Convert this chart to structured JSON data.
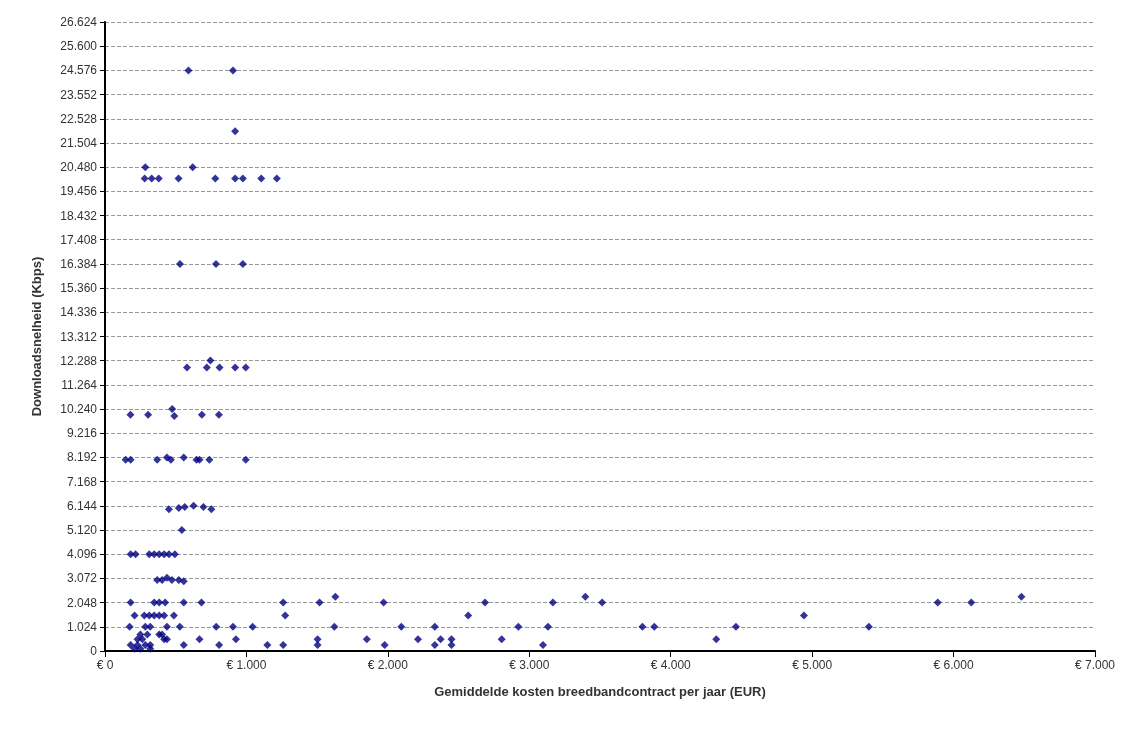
{
  "chart_data": {
    "type": "scatter",
    "xlabel": "Gemiddelde kosten breedbandcontract per jaar (EUR)",
    "ylabel": "Downloadsnelheid (Kbps)",
    "xlim": [
      0,
      7000
    ],
    "xticks": [
      {
        "value": 0,
        "label": "€ 0"
      },
      {
        "value": 1000,
        "label": "€ 1.000"
      },
      {
        "value": 2000,
        "label": "€ 2.000"
      },
      {
        "value": 3000,
        "label": "€ 3.000"
      },
      {
        "value": 4000,
        "label": "€ 4.000"
      },
      {
        "value": 5000,
        "label": "€ 5.000"
      },
      {
        "value": 6000,
        "label": "€ 6.000"
      },
      {
        "value": 7000,
        "label": "€ 7.000"
      }
    ],
    "ylim": [
      0,
      26624
    ],
    "yticks": [
      0,
      {
        "value": 1024,
        "label": "1.024"
      },
      {
        "value": 2048,
        "label": "2.048"
      },
      {
        "value": 3072,
        "label": "3.072"
      },
      {
        "value": 4096,
        "label": "4.096"
      },
      {
        "value": 5120,
        "label": "5.120"
      },
      {
        "value": 6144,
        "label": "6.144"
      },
      {
        "value": 7168,
        "label": "7.168"
      },
      {
        "value": 8192,
        "label": "8.192"
      },
      {
        "value": 9216,
        "label": "9.216"
      },
      {
        "value": 10240,
        "label": "10.240"
      },
      {
        "value": 11264,
        "label": "11.264"
      },
      {
        "value": 12288,
        "label": "12.288"
      },
      {
        "value": 13312,
        "label": "13.312"
      },
      {
        "value": 14336,
        "label": "14.336"
      },
      {
        "value": 15360,
        "label": "15.360"
      },
      {
        "value": 16384,
        "label": "16.384"
      },
      {
        "value": 17408,
        "label": "17.408"
      },
      {
        "value": 18432,
        "label": "18.432"
      },
      {
        "value": 19456,
        "label": "19.456"
      },
      {
        "value": 20480,
        "label": "20.480"
      },
      {
        "value": 21504,
        "label": "21.504"
      },
      {
        "value": 22528,
        "label": "22.528"
      },
      {
        "value": 23552,
        "label": "23.552"
      },
      {
        "value": 24576,
        "label": "24.576"
      },
      {
        "value": 25600,
        "label": "25.600"
      },
      {
        "value": 26624,
        "label": "26.624"
      }
    ],
    "grid": "y",
    "marker": "diamond",
    "series": [
      {
        "color": "#000080",
        "x": [
          590,
          905,
          920,
          285,
          620,
          280,
          330,
          380,
          520,
          780,
          920,
          975,
          1105,
          1215,
          530,
          785,
          975,
          580,
          720,
          745,
          810,
          920,
          995,
          180,
          305,
          475,
          490,
          685,
          805,
          146,
          181,
          369,
          438,
          466,
          557,
          647,
          668,
          738,
          995,
          452,
          522,
          564,
          626,
          696,
          752,
          543,
          181,
          216,
          313,
          348,
          383,
          418,
          452,
          494,
          369,
          404,
          438,
          473,
          522,
          557,
          181,
          348,
          383,
          425,
          557,
          682,
          1260,
          1517,
          1970,
          2687,
          3167,
          3515,
          5888,
          6125,
          1629,
          3396,
          6480,
          209,
          278,
          313,
          348,
          383,
          418,
          487,
          1274,
          2568,
          4942,
          174,
          285,
          320,
          438,
          529,
          786,
          905,
          1044,
          1622,
          2095,
          2332,
          2923,
          3132,
          3800,
          3884,
          4461,
          5401,
          250,
          299,
          383,
          404,
          230,
          264,
          418,
          438,
          668,
          926,
          1503,
          1851,
          2213,
          2373,
          2450,
          2805,
          4322,
          181,
          230,
          285,
          320,
          557,
          807,
          1148,
          1260,
          1503,
          1977,
          2332,
          2450,
          3097,
          209,
          250,
          320
        ],
        "values": [
          24576,
          24576,
          22000,
          20480,
          20480,
          20000,
          20000,
          20000,
          20000,
          20000,
          20000,
          20000,
          20000,
          20000,
          16384,
          16384,
          16384,
          12000,
          12000,
          12300,
          12000,
          12000,
          12000,
          10000,
          10000,
          10240,
          9950,
          10000,
          10000,
          8100,
          8100,
          8100,
          8192,
          8100,
          8192,
          8100,
          8100,
          8100,
          8100,
          6000,
          6050,
          6100,
          6144,
          6100,
          6000,
          5120,
          4096,
          4096,
          4096,
          4096,
          4096,
          4096,
          4096,
          4096,
          3000,
          3000,
          3100,
          3000,
          3000,
          2950,
          2048,
          2048,
          2048,
          2048,
          2048,
          2048,
          2048,
          2048,
          2048,
          2048,
          2048,
          2048,
          2048,
          2048,
          2300,
          2300,
          2300,
          1500,
          1500,
          1500,
          1500,
          1500,
          1500,
          1500,
          1500,
          1500,
          1500,
          1024,
          1024,
          1024,
          1024,
          1024,
          1024,
          1024,
          1024,
          1024,
          1024,
          1024,
          1024,
          1024,
          1024,
          1024,
          1024,
          1024,
          700,
          700,
          700,
          700,
          500,
          500,
          500,
          500,
          500,
          500,
          500,
          500,
          500,
          500,
          500,
          500,
          500,
          250,
          250,
          250,
          250,
          250,
          250,
          250,
          250,
          250,
          250,
          250,
          250,
          250,
          100,
          100,
          100
        ]
      }
    ]
  }
}
